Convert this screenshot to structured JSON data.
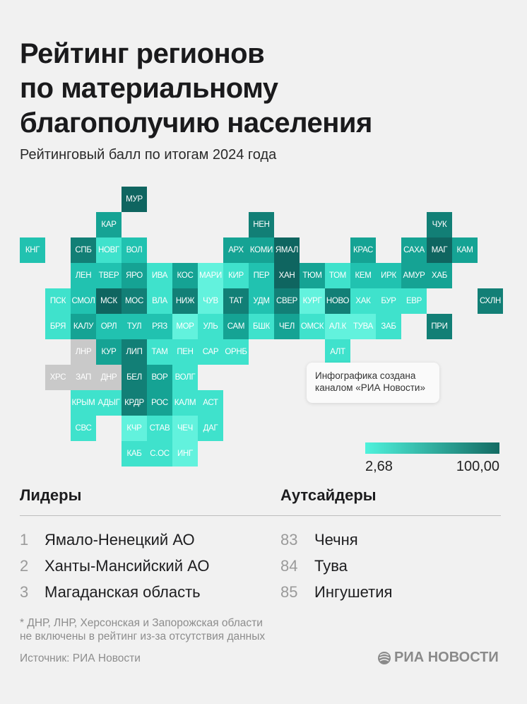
{
  "title_lines": [
    "Рейтинг регионов",
    "по материальному",
    "благополучию населения"
  ],
  "subtitle": "Рейтинговый балл по итогам 2024 года",
  "chart_data": {
    "type": "heatmap",
    "subtype": "tile-grid map",
    "title": "Рейтинг регионов по материальному благополучию населения",
    "subtitle": "Рейтинговый балл по итогам 2024 года",
    "scale": {
      "min": 2.68,
      "max": 100.0,
      "min_label": "2,68",
      "max_label": "100,00",
      "color_min": "#4ff2dc",
      "color_max": "#136b63"
    },
    "excluded_color": "#c9c9c9",
    "shade_colors": [
      "#62f2dd",
      "#3fe2cc",
      "#21c2b0",
      "#15a394",
      "#127f76",
      "#0f6560"
    ],
    "regions": [
      {
        "label": "МУР",
        "shade": 5
      },
      {
        "label": "КАР",
        "shade": 3
      },
      {
        "label": "НЕН",
        "shade": 4
      },
      {
        "label": "ЧУК",
        "shade": 4
      },
      {
        "label": "КНГ",
        "shade": 2
      },
      {
        "label": "СПБ",
        "shade": 4
      },
      {
        "label": "НОВГ",
        "shade": 1
      },
      {
        "label": "ВОЛ",
        "shade": 2
      },
      {
        "label": "АРХ",
        "shade": 3
      },
      {
        "label": "КОМИ",
        "shade": 3
      },
      {
        "label": "ЯМАЛ",
        "shade": 5
      },
      {
        "label": "КРАС",
        "shade": 3
      },
      {
        "label": "САХА",
        "shade": 3
      },
      {
        "label": "МАГ",
        "shade": 5
      },
      {
        "label": "КАМ",
        "shade": 3
      },
      {
        "label": "ЛЕН",
        "shade": 2
      },
      {
        "label": "ТВЕР",
        "shade": 2
      },
      {
        "label": "ЯРО",
        "shade": 3
      },
      {
        "label": "ИВА",
        "shade": 1
      },
      {
        "label": "КОС",
        "shade": 3
      },
      {
        "label": "МАРИ",
        "shade": 0
      },
      {
        "label": "КИР",
        "shade": 1
      },
      {
        "label": "ПЕР",
        "shade": 2
      },
      {
        "label": "ХАН",
        "shade": 5
      },
      {
        "label": "ТЮМ",
        "shade": 3
      },
      {
        "label": "ТОМ",
        "shade": 1
      },
      {
        "label": "КЕМ",
        "shade": 2
      },
      {
        "label": "ИРК",
        "shade": 2
      },
      {
        "label": "АМУР",
        "shade": 3
      },
      {
        "label": "ХАБ",
        "shade": 3
      },
      {
        "label": "ПСК",
        "shade": 1
      },
      {
        "label": "СМОЛ",
        "shade": 2
      },
      {
        "label": "МСК",
        "shade": 5
      },
      {
        "label": "МОС",
        "shade": 4
      },
      {
        "label": "ВЛА",
        "shade": 1
      },
      {
        "label": "НИЖ",
        "shade": 4
      },
      {
        "label": "ЧУВ",
        "shade": 0
      },
      {
        "label": "ТАТ",
        "shade": 4
      },
      {
        "label": "УДМ",
        "shade": 2
      },
      {
        "label": "СВЕР",
        "shade": 4
      },
      {
        "label": "КУРГ",
        "shade": 0
      },
      {
        "label": "НОВО",
        "shade": 4
      },
      {
        "label": "ХАК",
        "shade": 1
      },
      {
        "label": "БУР",
        "shade": 1
      },
      {
        "label": "ЕВР",
        "shade": 1
      },
      {
        "label": "СХЛН",
        "shade": 4
      },
      {
        "label": "БРЯ",
        "shade": 1
      },
      {
        "label": "КАЛУ",
        "shade": 3
      },
      {
        "label": "ОРЛ",
        "shade": 2
      },
      {
        "label": "ТУЛ",
        "shade": 2
      },
      {
        "label": "РЯЗ",
        "shade": 2
      },
      {
        "label": "МОР",
        "shade": 0
      },
      {
        "label": "УЛЬ",
        "shade": 1
      },
      {
        "label": "САМ",
        "shade": 3
      },
      {
        "label": "БШК",
        "shade": 1
      },
      {
        "label": "ЧЕЛ",
        "shade": 3
      },
      {
        "label": "ОМСК",
        "shade": 1
      },
      {
        "label": "АЛ.К",
        "shade": 0
      },
      {
        "label": "ТУВА",
        "shade": 0
      },
      {
        "label": "ЗАБ",
        "shade": 1
      },
      {
        "label": "ПРИ",
        "shade": 4
      },
      {
        "label": "ЛНР",
        "excluded": true
      },
      {
        "label": "КУР",
        "shade": 3
      },
      {
        "label": "ЛИП",
        "shade": 4
      },
      {
        "label": "ТАМ",
        "shade": 1
      },
      {
        "label": "ПЕН",
        "shade": 1
      },
      {
        "label": "САР",
        "shade": 1
      },
      {
        "label": "ОРНБ",
        "shade": 1
      },
      {
        "label": "АЛТ",
        "shade": 1
      },
      {
        "label": "ХРС",
        "excluded": true
      },
      {
        "label": "ЗАП",
        "excluded": true
      },
      {
        "label": "ДНР",
        "excluded": true
      },
      {
        "label": "БЕЛ",
        "shade": 4
      },
      {
        "label": "ВОР",
        "shade": 3
      },
      {
        "label": "ВОЛГ",
        "shade": 1
      },
      {
        "label": "КРЫМ",
        "shade": 1
      },
      {
        "label": "АДЫГ",
        "shade": 1
      },
      {
        "label": "КРДР",
        "shade": 4
      },
      {
        "label": "РОС",
        "shade": 3
      },
      {
        "label": "КАЛМ",
        "shade": 1
      },
      {
        "label": "АСТ",
        "shade": 1
      },
      {
        "label": "СВС",
        "shade": 1
      },
      {
        "label": "КЧР",
        "shade": 0
      },
      {
        "label": "СТАВ",
        "shade": 1
      },
      {
        "label": "ЧЕЧ",
        "shade": 0
      },
      {
        "label": "ДАГ",
        "shade": 1
      },
      {
        "label": "КАБ",
        "shade": 1
      },
      {
        "label": "С.ОС",
        "shade": 1
      },
      {
        "label": "ИНГ",
        "shade": 0
      }
    ]
  },
  "info_note": [
    "Инфографика создана",
    "каналом «РИА Новости»"
  ],
  "leaders": {
    "heading": "Лидеры",
    "items": [
      {
        "rank": "1",
        "name": "Ямало-Ненецкий АО"
      },
      {
        "rank": "2",
        "name": "Ханты-Мансийский АО"
      },
      {
        "rank": "3",
        "name": "Магаданская область"
      }
    ]
  },
  "outsiders": {
    "heading": "Аутсайдеры",
    "items": [
      {
        "rank": "83",
        "name": "Чечня"
      },
      {
        "rank": "84",
        "name": "Тува"
      },
      {
        "rank": "85",
        "name": "Ингушетия"
      }
    ]
  },
  "footnote": [
    "* ДНР, ЛНР, Херсонская и Запорожская области",
    "не включены в рейтинг из-за отсутствия данных"
  ],
  "source": "Источник: РИА Новости",
  "logo_text": "РИА НОВОСТИ"
}
